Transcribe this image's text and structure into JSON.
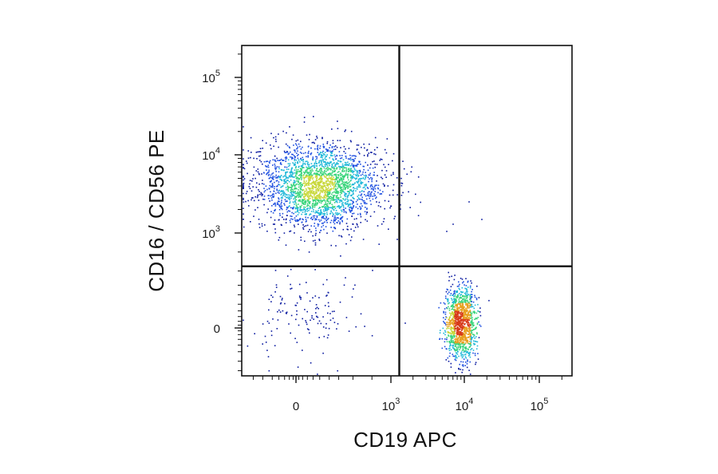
{
  "chart_data": {
    "type": "scatter",
    "subtype": "flow-cytometry-density-dot-plot",
    "xlabel": "CD19 APC",
    "ylabel": "CD16 / CD56 PE",
    "x_scale": "biexponential (logicle)",
    "y_scale": "biexponential (logicle)",
    "x_ticks": [
      {
        "base": "0",
        "exp": ""
      },
      {
        "base": "10",
        "exp": "3"
      },
      {
        "base": "10",
        "exp": "4"
      },
      {
        "base": "10",
        "exp": "5"
      }
    ],
    "y_ticks": [
      {
        "base": "0",
        "exp": ""
      },
      {
        "base": "10",
        "exp": "3"
      },
      {
        "base": "10",
        "exp": "4"
      },
      {
        "base": "10",
        "exp": "5"
      }
    ],
    "quadrant_gate": {
      "x": 1300,
      "y": 650
    },
    "density_colors": [
      "#0a1aa0",
      "#1e4fe0",
      "#20b8d8",
      "#38d47a",
      "#c8d83a",
      "#e8a020",
      "#d83a1a"
    ],
    "populations": [
      {
        "name": "",
        "center": {
          "x": 250,
          "y": 4000
        },
        "spread_log10": {
          "x": 0.33,
          "y": 0.27
        },
        "events": 2600
      },
      {
        "name": "",
        "center": {
          "x": 9000,
          "y": 40
        },
        "spread_log10": {
          "x": 0.1,
          "y": 0.0
        },
        "events": 1300
      },
      {
        "name": "",
        "center": {
          "x": 100,
          "y": 150
        },
        "spread_log10": {
          "x": 0.5,
          "y": 0.0
        },
        "events": 140
      }
    ],
    "grid": false,
    "legend": "none"
  }
}
